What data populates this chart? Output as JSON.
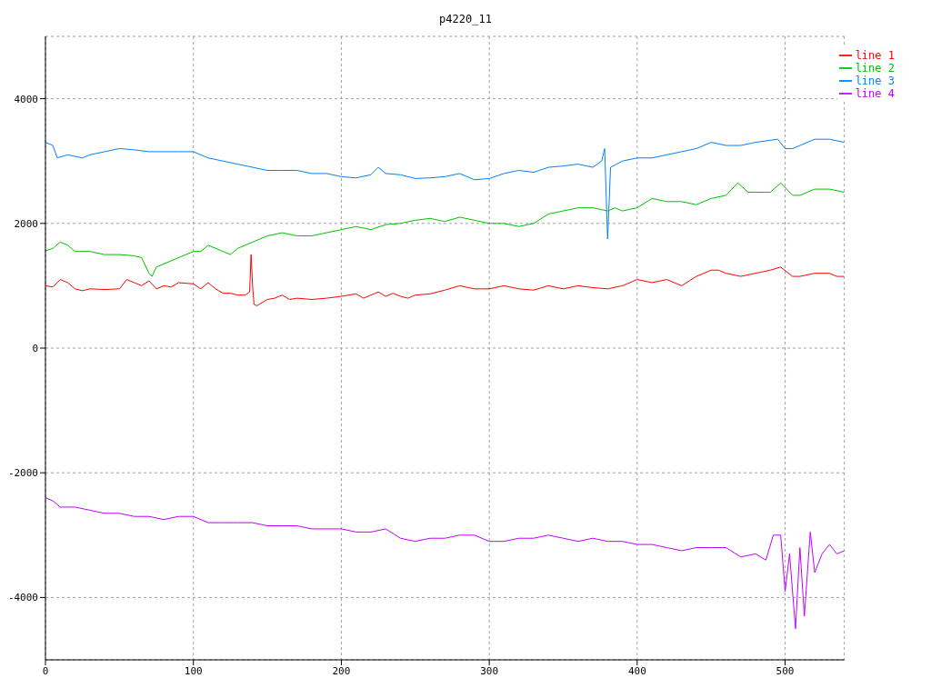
{
  "chart_data": {
    "type": "line",
    "title": "p4220_11",
    "xlim": [
      0,
      540
    ],
    "xticks": [
      0,
      100,
      200,
      300,
      400,
      500
    ],
    "ylim": [
      -5000,
      5000
    ],
    "yticks": [
      -4000,
      -2000,
      0,
      2000,
      4000
    ],
    "grid": true,
    "legend": "top right",
    "marker": "none",
    "line_style": "solid",
    "series": [
      {
        "name": "line 1",
        "color": "#ff0000",
        "x": [
          0,
          5,
          10,
          15,
          20,
          25,
          30,
          40,
          50,
          55,
          60,
          65,
          70,
          75,
          80,
          85,
          90,
          100,
          105,
          110,
          115,
          120,
          125,
          130,
          135,
          138,
          139,
          140,
          141,
          143,
          150,
          155,
          160,
          165,
          170,
          180,
          190,
          200,
          210,
          215,
          220,
          225,
          230,
          235,
          240,
          245,
          250,
          260,
          270,
          280,
          290,
          300,
          310,
          320,
          330,
          340,
          350,
          360,
          370,
          380,
          390,
          400,
          410,
          420,
          430,
          440,
          450,
          455,
          460,
          470,
          480,
          490,
          497,
          505,
          510,
          520,
          530,
          535,
          540
        ],
        "values": [
          1000,
          980,
          1100,
          1050,
          950,
          920,
          950,
          940,
          950,
          1100,
          1050,
          1000,
          1080,
          950,
          1000,
          980,
          1050,
          1030,
          950,
          1050,
          950,
          880,
          880,
          850,
          850,
          900,
          1500,
          1000,
          700,
          680,
          780,
          800,
          850,
          780,
          800,
          780,
          800,
          830,
          870,
          800,
          850,
          900,
          830,
          880,
          830,
          800,
          850,
          870,
          930,
          1000,
          950,
          950,
          1000,
          950,
          930,
          1000,
          950,
          1000,
          970,
          950,
          1000,
          1100,
          1050,
          1100,
          1000,
          1150,
          1250,
          1250,
          1200,
          1150,
          1200,
          1250,
          1300,
          1150,
          1150,
          1200,
          1200,
          1150,
          1150
        ]
      },
      {
        "name": "line 2",
        "color": "#00c000",
        "x": [
          0,
          5,
          10,
          15,
          20,
          30,
          40,
          50,
          60,
          65,
          70,
          72,
          75,
          85,
          95,
          100,
          105,
          110,
          120,
          125,
          130,
          140,
          150,
          160,
          170,
          180,
          190,
          200,
          210,
          220,
          230,
          240,
          250,
          260,
          270,
          280,
          290,
          300,
          310,
          320,
          330,
          340,
          350,
          360,
          370,
          380,
          385,
          390,
          400,
          410,
          420,
          430,
          440,
          450,
          460,
          468,
          475,
          490,
          497,
          505,
          510,
          520,
          530,
          540
        ],
        "values": [
          1560,
          1600,
          1700,
          1650,
          1550,
          1550,
          1500,
          1500,
          1480,
          1450,
          1200,
          1150,
          1300,
          1400,
          1500,
          1550,
          1550,
          1650,
          1550,
          1500,
          1600,
          1700,
          1800,
          1850,
          1800,
          1800,
          1850,
          1900,
          1950,
          1900,
          1980,
          2000,
          2050,
          2080,
          2030,
          2100,
          2050,
          2000,
          2000,
          1950,
          2000,
          2150,
          2200,
          2250,
          2250,
          2200,
          2250,
          2200,
          2250,
          2400,
          2350,
          2350,
          2300,
          2400,
          2450,
          2650,
          2500,
          2500,
          2650,
          2450,
          2450,
          2550,
          2550,
          2500
        ]
      },
      {
        "name": "line 3",
        "color": "#0080ff",
        "x": [
          0,
          5,
          8,
          15,
          25,
          30,
          40,
          50,
          60,
          70,
          80,
          90,
          100,
          110,
          120,
          130,
          140,
          150,
          160,
          170,
          180,
          190,
          200,
          210,
          220,
          225,
          230,
          240,
          250,
          260,
          270,
          280,
          290,
          300,
          310,
          320,
          330,
          340,
          350,
          360,
          370,
          376,
          378,
          380,
          382,
          390,
          400,
          410,
          420,
          430,
          440,
          450,
          460,
          470,
          480,
          495,
          500,
          505,
          520,
          530,
          540
        ],
        "values": [
          3300,
          3250,
          3050,
          3100,
          3050,
          3100,
          3150,
          3200,
          3180,
          3150,
          3150,
          3150,
          3150,
          3050,
          3000,
          2950,
          2900,
          2850,
          2850,
          2850,
          2800,
          2800,
          2750,
          2730,
          2780,
          2900,
          2800,
          2780,
          2720,
          2730,
          2750,
          2800,
          2700,
          2720,
          2800,
          2850,
          2820,
          2900,
          2920,
          2950,
          2900,
          3000,
          3200,
          1750,
          2900,
          3000,
          3050,
          3050,
          3100,
          3150,
          3200,
          3300,
          3250,
          3250,
          3300,
          3350,
          3200,
          3200,
          3350,
          3350,
          3300
        ]
      },
      {
        "name": "line 4",
        "color": "#c000ff",
        "x": [
          0,
          5,
          10,
          20,
          30,
          40,
          50,
          60,
          70,
          80,
          90,
          100,
          110,
          120,
          130,
          140,
          150,
          160,
          170,
          180,
          190,
          200,
          210,
          220,
          230,
          240,
          250,
          260,
          270,
          280,
          290,
          300,
          310,
          320,
          330,
          340,
          350,
          360,
          370,
          380,
          390,
          400,
          410,
          420,
          430,
          440,
          450,
          460,
          470,
          480,
          487,
          492,
          497,
          500,
          503,
          507,
          510,
          513,
          517,
          520,
          525,
          530,
          535,
          540
        ],
        "values": [
          -2400,
          -2450,
          -2550,
          -2550,
          -2600,
          -2650,
          -2650,
          -2700,
          -2700,
          -2750,
          -2700,
          -2700,
          -2800,
          -2800,
          -2800,
          -2800,
          -2850,
          -2850,
          -2850,
          -2900,
          -2900,
          -2900,
          -2950,
          -2950,
          -2900,
          -3050,
          -3100,
          -3050,
          -3050,
          -3000,
          -3000,
          -3100,
          -3100,
          -3050,
          -3050,
          -3000,
          -3050,
          -3100,
          -3050,
          -3100,
          -3100,
          -3150,
          -3150,
          -3200,
          -3250,
          -3200,
          -3200,
          -3200,
          -3350,
          -3300,
          -3400,
          -3000,
          -3000,
          -3900,
          -3300,
          -4500,
          -3200,
          -4300,
          -2950,
          -3600,
          -3300,
          -3150,
          -3300,
          -3250
        ]
      }
    ]
  }
}
